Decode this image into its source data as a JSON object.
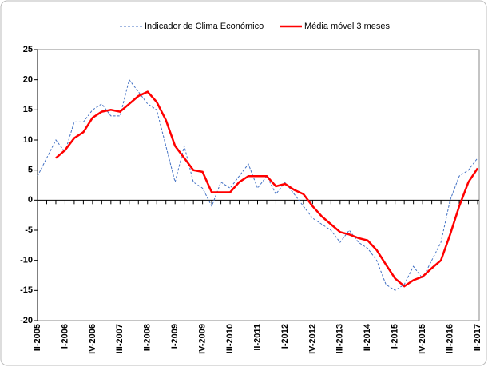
{
  "chart_data": {
    "type": "line",
    "categories": [
      "II-2005",
      null,
      null,
      "I-2006",
      null,
      null,
      "IV-2006",
      null,
      null,
      "III-2007",
      null,
      null,
      "II-2008",
      null,
      null,
      "I-2009",
      null,
      null,
      "IV-2009",
      null,
      null,
      "III-2010",
      null,
      null,
      "II-2011",
      null,
      null,
      "I-2012",
      null,
      null,
      "IV-2012",
      null,
      null,
      "III-2013",
      null,
      null,
      "II-2014",
      null,
      null,
      "I-2015",
      null,
      null,
      "IV-2015",
      null,
      null,
      "III-2016",
      null,
      null,
      "II-2017"
    ],
    "series": [
      {
        "name": "Indicador de Clima Económico",
        "color": "#4472c4",
        "dashed": true,
        "values": [
          4,
          7,
          10,
          8,
          13,
          13,
          15,
          16,
          14,
          14,
          20,
          18,
          16,
          15,
          9,
          3,
          9,
          3,
          2,
          -1,
          3,
          2,
          4,
          6,
          2,
          4,
          1,
          3,
          1,
          -1,
          -3,
          -4,
          -5,
          -7,
          -5,
          -7,
          -8,
          -10,
          -14,
          -15,
          -14,
          -11,
          -13,
          -10,
          -7,
          0,
          4,
          5,
          7
        ]
      },
      {
        "name": "Média móvel 3 meses",
        "color": "#ff0000",
        "dashed": false,
        "values": [
          null,
          null,
          7,
          8.3,
          10.3,
          11.3,
          13.7,
          14.7,
          15,
          14.7,
          16,
          17.3,
          18,
          16.3,
          13.3,
          9,
          7,
          5,
          4.7,
          1.3,
          1.3,
          1.3,
          3,
          4,
          4,
          4,
          2.3,
          2.7,
          1.7,
          1,
          -1,
          -2.7,
          -4,
          -5.3,
          -5.7,
          -6.3,
          -6.7,
          -8.3,
          -10.7,
          -13,
          -14.3,
          -13.3,
          -12.7,
          -11.3,
          -10,
          -5.7,
          -1,
          3,
          5.3
        ]
      }
    ],
    "ylim": [
      -20,
      25
    ],
    "yticks": [
      -20,
      -15,
      -10,
      -5,
      0,
      5,
      10,
      15,
      20,
      25
    ],
    "grid": false,
    "legend": "top"
  }
}
